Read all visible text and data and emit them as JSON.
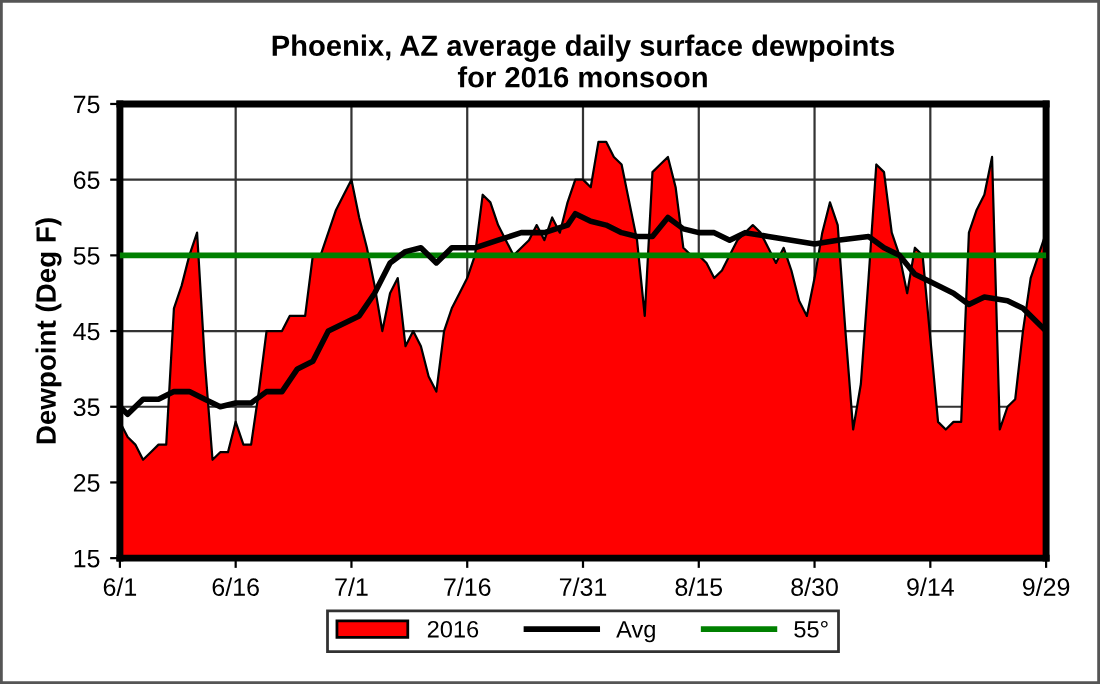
{
  "chart_data": {
    "type": "area",
    "title": "Phoenix, AZ average daily surface dewpoints\nfor 2016 monsoon",
    "ylabel": "Dewpoint (Deg F)",
    "x": [
      "2016-06-01",
      "2016-06-02",
      "2016-06-03",
      "2016-06-04",
      "2016-06-05",
      "2016-06-06",
      "2016-06-07",
      "2016-06-08",
      "2016-06-09",
      "2016-06-10",
      "2016-06-11",
      "2016-06-12",
      "2016-06-13",
      "2016-06-14",
      "2016-06-15",
      "2016-06-16",
      "2016-06-17",
      "2016-06-18",
      "2016-06-19",
      "2016-06-20",
      "2016-06-21",
      "2016-06-22",
      "2016-06-23",
      "2016-06-24",
      "2016-06-25",
      "2016-06-26",
      "2016-06-27",
      "2016-06-28",
      "2016-06-29",
      "2016-06-30",
      "2016-07-01",
      "2016-07-02",
      "2016-07-03",
      "2016-07-04",
      "2016-07-05",
      "2016-07-06",
      "2016-07-07",
      "2016-07-08",
      "2016-07-09",
      "2016-07-10",
      "2016-07-11",
      "2016-07-12",
      "2016-07-13",
      "2016-07-14",
      "2016-07-15",
      "2016-07-16",
      "2016-07-17",
      "2016-07-18",
      "2016-07-19",
      "2016-07-20",
      "2016-07-21",
      "2016-07-22",
      "2016-07-23",
      "2016-07-24",
      "2016-07-25",
      "2016-07-26",
      "2016-07-27",
      "2016-07-28",
      "2016-07-29",
      "2016-07-30",
      "2016-07-31",
      "2016-08-01",
      "2016-08-02",
      "2016-08-03",
      "2016-08-04",
      "2016-08-05",
      "2016-08-06",
      "2016-08-07",
      "2016-08-08",
      "2016-08-09",
      "2016-08-10",
      "2016-08-11",
      "2016-08-12",
      "2016-08-13",
      "2016-08-14",
      "2016-08-15",
      "2016-08-16",
      "2016-08-17",
      "2016-08-18",
      "2016-08-19",
      "2016-08-20",
      "2016-08-21",
      "2016-08-22",
      "2016-08-23",
      "2016-08-24",
      "2016-08-25",
      "2016-08-26",
      "2016-08-27",
      "2016-08-28",
      "2016-08-29",
      "2016-08-30",
      "2016-08-31",
      "2016-09-01",
      "2016-09-02",
      "2016-09-03",
      "2016-09-04",
      "2016-09-05",
      "2016-09-06",
      "2016-09-07",
      "2016-09-08",
      "2016-09-09",
      "2016-09-10",
      "2016-09-11",
      "2016-09-12",
      "2016-09-13",
      "2016-09-14",
      "2016-09-15",
      "2016-09-16",
      "2016-09-17",
      "2016-09-18",
      "2016-09-19",
      "2016-09-20",
      "2016-09-21",
      "2016-09-22",
      "2016-09-23",
      "2016-09-24",
      "2016-09-25",
      "2016-09-26",
      "2016-09-27",
      "2016-09-28",
      "2016-09-29"
    ],
    "series": [
      {
        "name": "2016",
        "color": "#ff0000",
        "values": [
          33,
          31,
          30,
          28,
          29,
          30,
          30,
          48,
          51,
          55,
          58,
          41,
          28,
          29,
          29,
          33,
          30,
          30,
          37,
          45,
          45,
          45,
          47,
          47,
          47,
          55,
          55,
          58,
          61,
          63,
          65,
          60,
          56,
          51,
          45,
          50,
          52,
          43,
          45,
          43,
          39,
          37,
          45,
          48,
          50,
          52,
          55,
          63,
          62,
          59,
          57,
          55,
          56,
          57,
          59,
          57,
          60,
          58,
          62,
          65,
          65,
          64,
          70,
          70,
          68,
          67,
          62,
          57,
          47,
          66,
          67,
          68,
          64,
          56,
          55,
          55,
          54,
          52,
          53,
          55,
          57,
          58,
          59,
          58,
          56,
          54,
          56,
          53,
          49,
          47,
          52,
          58,
          62,
          59,
          45,
          32,
          38,
          52,
          67,
          66,
          58,
          55,
          50,
          56,
          55,
          44,
          33,
          32,
          33,
          33,
          58,
          61,
          63,
          68,
          32,
          35,
          36,
          45,
          52,
          55,
          58
        ]
      },
      {
        "name": "Avg",
        "type": "line",
        "color": "#000000",
        "x": [
          "2016-06-01",
          "2016-06-02",
          "2016-06-04",
          "2016-06-06",
          "2016-06-08",
          "2016-06-10",
          "2016-06-12",
          "2016-06-14",
          "2016-06-16",
          "2016-06-18",
          "2016-06-20",
          "2016-06-22",
          "2016-06-24",
          "2016-06-26",
          "2016-06-28",
          "2016-06-30",
          "2016-07-02",
          "2016-07-04",
          "2016-07-06",
          "2016-07-08",
          "2016-07-10",
          "2016-07-12",
          "2016-07-14",
          "2016-07-17",
          "2016-07-20",
          "2016-07-23",
          "2016-07-26",
          "2016-07-29",
          "2016-07-30",
          "2016-08-01",
          "2016-08-03",
          "2016-08-05",
          "2016-08-07",
          "2016-08-09",
          "2016-08-11",
          "2016-08-13",
          "2016-08-15",
          "2016-08-17",
          "2016-08-19",
          "2016-08-21",
          "2016-08-24",
          "2016-08-27",
          "2016-08-30",
          "2016-09-02",
          "2016-09-06",
          "2016-09-08",
          "2016-09-10",
          "2016-09-12",
          "2016-09-14",
          "2016-09-17",
          "2016-09-19",
          "2016-09-21",
          "2016-09-24",
          "2016-09-26",
          "2016-09-28",
          "2016-09-29"
        ],
        "values": [
          35,
          34,
          36,
          36,
          37,
          37,
          36,
          35,
          35.5,
          35.5,
          37,
          37,
          40,
          41,
          45,
          46,
          47,
          50,
          54,
          55.5,
          56,
          54,
          56,
          56,
          57,
          58,
          58,
          59,
          60.5,
          59.5,
          59,
          58,
          57.5,
          57.5,
          60,
          58.5,
          58,
          58,
          57,
          58,
          57.5,
          57,
          56.5,
          57,
          57.5,
          56,
          55,
          52.5,
          51.5,
          50,
          48.5,
          49.5,
          49,
          48,
          46,
          45
        ]
      }
    ],
    "ref_lines": [
      {
        "axis": "y",
        "value": 55,
        "label": "55°",
        "color": "#008000"
      }
    ],
    "xlim": [
      "2016-06-01",
      "2016-09-29"
    ],
    "xticks": [
      {
        "value": "2016-06-01",
        "label": "6/1"
      },
      {
        "value": "2016-06-16",
        "label": "6/16"
      },
      {
        "value": "2016-07-01",
        "label": "7/1"
      },
      {
        "value": "2016-07-16",
        "label": "7/16"
      },
      {
        "value": "2016-07-31",
        "label": "7/31"
      },
      {
        "value": "2016-08-15",
        "label": "8/15"
      },
      {
        "value": "2016-08-30",
        "label": "8/30"
      },
      {
        "value": "2016-09-14",
        "label": "9/14"
      },
      {
        "value": "2016-09-29",
        "label": "9/29"
      }
    ],
    "ylim": [
      15,
      75
    ],
    "yticks": [
      15,
      25,
      35,
      45,
      55,
      65,
      75
    ],
    "grid": true,
    "legend": "bottom"
  }
}
